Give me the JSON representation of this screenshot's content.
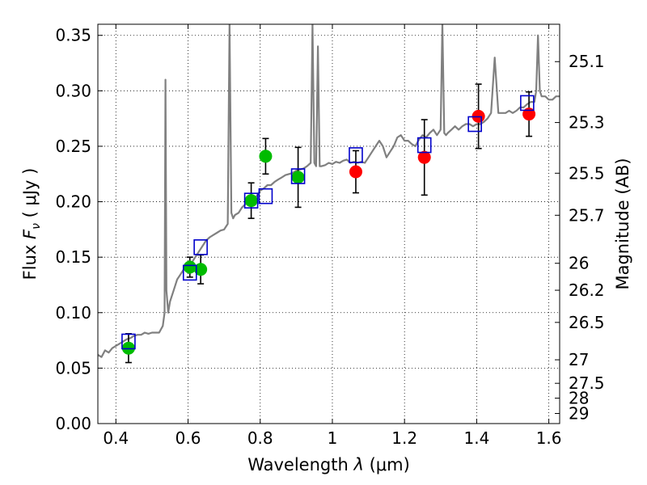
{
  "chart_data": {
    "type": "scatter",
    "xlabel": "Wavelength  λ (μm)",
    "ylabel": "Flux  F_ν  ( μJy )",
    "ylabel_parts": {
      "prefix": "Flux  ",
      "symbol": "F",
      "subscript": "ν",
      "unit": "  ( μJy )"
    },
    "xlabel_parts": {
      "prefix": "Wavelength  ",
      "symbol": "λ",
      "unit": " (μm)"
    },
    "y2label": "Magnitude (AB)",
    "xlim": [
      0.35,
      1.63
    ],
    "ylim": [
      0.0,
      0.36
    ],
    "xticks": [
      0.4,
      0.6,
      0.8,
      1.0,
      1.2,
      1.4,
      1.6
    ],
    "xtick_labels": [
      "0.4",
      "0.6",
      "0.8",
      "1",
      "1.2",
      "1.4",
      "1.6"
    ],
    "yticks": [
      0.0,
      0.05,
      0.1,
      0.15,
      0.2,
      0.25,
      0.3,
      0.35
    ],
    "ytick_labels": [
      "0.00",
      "0.05",
      "0.10",
      "0.15",
      "0.20",
      "0.25",
      "0.30",
      "0.35"
    ],
    "y2_ticks": [
      {
        "label": "25.1",
        "flux": 0.3263
      },
      {
        "label": "25.3",
        "flux": 0.2714
      },
      {
        "label": "25.5",
        "flux": 0.2257
      },
      {
        "label": "25.7",
        "flux": 0.1878
      },
      {
        "label": "26",
        "flux": 0.1445
      },
      {
        "label": "26.2",
        "flux": 0.1202
      },
      {
        "label": "26.5",
        "flux": 0.0912
      },
      {
        "label": "27",
        "flux": 0.0575
      },
      {
        "label": "27.5",
        "flux": 0.0363
      },
      {
        "label": "28",
        "flux": 0.0229
      },
      {
        "label": "29",
        "flux": 0.0091
      }
    ],
    "grid": true,
    "colors": {
      "model": "#808080",
      "green": "#00bb00",
      "red": "#ff0000",
      "box": "#0000cc",
      "errorbar": "#000000"
    },
    "series": [
      {
        "kind": "model-spectrum",
        "x": [
          0.35,
          0.36,
          0.37,
          0.38,
          0.39,
          0.4,
          0.41,
          0.42,
          0.43,
          0.44,
          0.45,
          0.46,
          0.47,
          0.48,
          0.49,
          0.5,
          0.51,
          0.52,
          0.53,
          0.535,
          0.5375,
          0.54,
          0.545,
          0.55,
          0.56,
          0.57,
          0.58,
          0.59,
          0.6,
          0.61,
          0.62,
          0.63,
          0.64,
          0.65,
          0.66,
          0.67,
          0.68,
          0.69,
          0.7,
          0.71,
          0.715,
          0.72,
          0.725,
          0.73,
          0.74,
          0.75,
          0.76,
          0.77,
          0.78,
          0.79,
          0.8,
          0.81,
          0.82,
          0.83,
          0.84,
          0.85,
          0.86,
          0.87,
          0.88,
          0.89,
          0.9,
          0.91,
          0.92,
          0.93,
          0.94,
          0.945,
          0.95,
          0.955,
          0.96,
          0.965,
          0.97,
          0.98,
          0.99,
          1.0,
          1.01,
          1.02,
          1.03,
          1.04,
          1.05,
          1.06,
          1.07,
          1.08,
          1.09,
          1.1,
          1.11,
          1.12,
          1.13,
          1.14,
          1.15,
          1.16,
          1.17,
          1.18,
          1.19,
          1.2,
          1.21,
          1.22,
          1.23,
          1.24,
          1.25,
          1.26,
          1.27,
          1.28,
          1.29,
          1.3,
          1.305,
          1.31,
          1.315,
          1.32,
          1.33,
          1.34,
          1.35,
          1.36,
          1.37,
          1.38,
          1.39,
          1.4,
          1.41,
          1.42,
          1.43,
          1.44,
          1.45,
          1.46,
          1.47,
          1.48,
          1.49,
          1.5,
          1.51,
          1.52,
          1.53,
          1.54,
          1.55,
          1.56,
          1.565,
          1.57,
          1.575,
          1.58,
          1.59,
          1.6,
          1.61,
          1.62,
          1.63
        ],
        "y": [
          0.062,
          0.06,
          0.066,
          0.064,
          0.068,
          0.07,
          0.072,
          0.074,
          0.076,
          0.077,
          0.079,
          0.08,
          0.08,
          0.082,
          0.081,
          0.082,
          0.082,
          0.082,
          0.088,
          0.1,
          0.31,
          0.12,
          0.1,
          0.11,
          0.12,
          0.13,
          0.135,
          0.14,
          0.14,
          0.145,
          0.15,
          0.155,
          0.16,
          0.165,
          0.168,
          0.17,
          0.172,
          0.174,
          0.175,
          0.18,
          0.36,
          0.19,
          0.185,
          0.188,
          0.19,
          0.195,
          0.198,
          0.2,
          0.202,
          0.205,
          0.21,
          0.212,
          0.215,
          0.215,
          0.218,
          0.22,
          0.222,
          0.224,
          0.225,
          0.226,
          0.228,
          0.229,
          0.23,
          0.232,
          0.235,
          0.36,
          0.235,
          0.232,
          0.34,
          0.232,
          0.232,
          0.233,
          0.235,
          0.234,
          0.236,
          0.235,
          0.237,
          0.238,
          0.235,
          0.236,
          0.235,
          0.236,
          0.235,
          0.24,
          0.245,
          0.25,
          0.255,
          0.25,
          0.24,
          0.245,
          0.25,
          0.258,
          0.26,
          0.255,
          0.255,
          0.252,
          0.25,
          0.256,
          0.26,
          0.258,
          0.262,
          0.265,
          0.26,
          0.265,
          0.36,
          0.262,
          0.26,
          0.262,
          0.265,
          0.268,
          0.265,
          0.268,
          0.27,
          0.27,
          0.268,
          0.27,
          0.27,
          0.272,
          0.275,
          0.28,
          0.33,
          0.28,
          0.28,
          0.28,
          0.282,
          0.28,
          0.282,
          0.285,
          0.285,
          0.288,
          0.29,
          0.29,
          0.3,
          0.35,
          0.3,
          0.295,
          0.295,
          0.292,
          0.292,
          0.295,
          0.295
        ]
      },
      {
        "kind": "model-photometry",
        "marker": "open-square",
        "x": [
          0.435,
          0.605,
          0.635,
          0.775,
          0.815,
          0.905,
          1.065,
          1.255,
          1.395,
          1.54
        ],
        "y": [
          0.074,
          0.136,
          0.159,
          0.201,
          0.205,
          0.223,
          0.242,
          0.251,
          0.27,
          0.289
        ]
      },
      {
        "kind": "observed-optical",
        "marker": "filled-circle-green",
        "x": [
          0.435,
          0.605,
          0.635,
          0.775,
          0.815,
          0.905
        ],
        "y": [
          0.068,
          0.141,
          0.139,
          0.201,
          0.241,
          0.222
        ],
        "yerr": [
          0.013,
          0.009,
          0.013,
          0.016,
          0.016,
          0.027
        ]
      },
      {
        "kind": "observed-nir",
        "marker": "filled-circle-red",
        "x": [
          1.065,
          1.255,
          1.405,
          1.545
        ],
        "y": [
          0.227,
          0.24,
          0.277,
          0.279
        ],
        "yerr": [
          0.019,
          0.034,
          0.029,
          0.02
        ]
      }
    ]
  }
}
